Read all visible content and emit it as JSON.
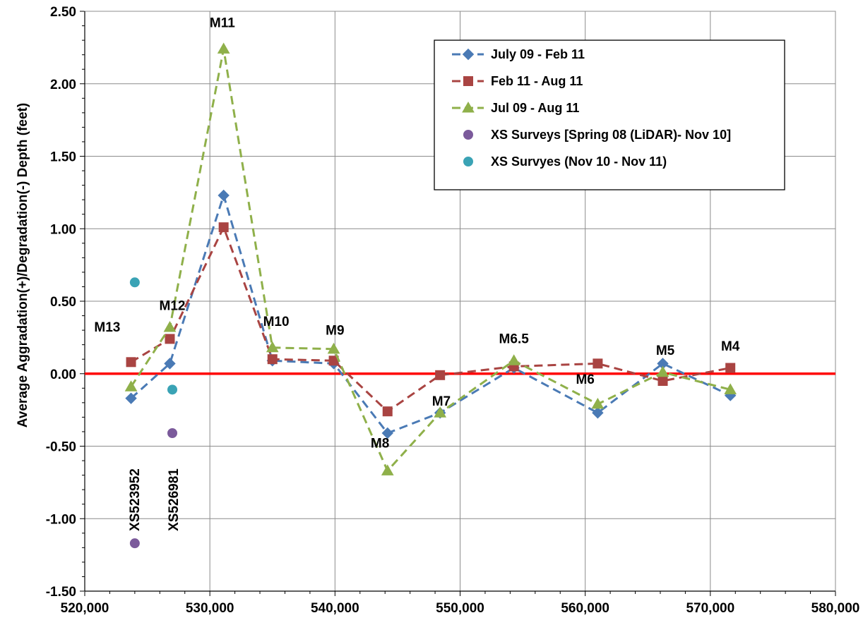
{
  "chart_data": {
    "type": "line",
    "title": "",
    "xlabel": "",
    "ylabel": "Average Aggradation(+)/Degradation(-) Depth (feet)",
    "xlim": [
      520000,
      580000
    ],
    "ylim": [
      -1.5,
      2.5
    ],
    "x_ticks": [
      "520,000",
      "530,000",
      "540,000",
      "550,000",
      "560,000",
      "570,000",
      "580,000"
    ],
    "y_ticks": [
      "2.50",
      "2.00",
      "1.50",
      "1.00",
      "0.50",
      "0.00",
      "-0.50",
      "-1.00",
      "-1.50"
    ],
    "grid": true,
    "legend_position": "top-right",
    "zero_line_color": "#ff0000",
    "series": [
      {
        "name": "July 09 - Feb 11",
        "color": "#4a7ab5",
        "marker": "diamond",
        "line": "dashed",
        "points": [
          [
            523700,
            -0.17
          ],
          [
            526800,
            0.07
          ],
          [
            531100,
            1.23
          ],
          [
            535000,
            0.09
          ],
          [
            539900,
            0.07
          ],
          [
            544200,
            -0.41
          ],
          [
            548400,
            -0.27
          ],
          [
            554300,
            0.04
          ],
          [
            561000,
            -0.27
          ],
          [
            566200,
            0.07
          ],
          [
            571600,
            -0.15
          ]
        ]
      },
      {
        "name": "Feb 11 - Aug 11",
        "color": "#a94442",
        "marker": "square",
        "line": "dashed",
        "points": [
          [
            523700,
            0.08
          ],
          [
            526800,
            0.24
          ],
          [
            531100,
            1.01
          ],
          [
            535000,
            0.1
          ],
          [
            539900,
            0.09
          ],
          [
            544200,
            -0.26
          ],
          [
            548400,
            -0.01
          ],
          [
            554300,
            0.05
          ],
          [
            561000,
            0.07
          ],
          [
            566200,
            -0.05
          ],
          [
            571600,
            0.04
          ]
        ]
      },
      {
        "name": "Jul 09 - Aug 11",
        "color": "#8fb04a",
        "marker": "triangle",
        "line": "dashed",
        "points": [
          [
            523700,
            -0.09
          ],
          [
            526800,
            0.32
          ],
          [
            531100,
            2.24
          ],
          [
            535000,
            0.18
          ],
          [
            539900,
            0.17
          ],
          [
            544200,
            -0.67
          ],
          [
            548400,
            -0.27
          ],
          [
            554300,
            0.09
          ],
          [
            561000,
            -0.21
          ],
          [
            566200,
            0.01
          ],
          [
            571600,
            -0.11
          ]
        ]
      },
      {
        "name": "XS Surveys [Spring 08 (LiDAR)- Nov 10]",
        "color": "#7b5a9b",
        "marker": "circle",
        "line": "none",
        "points": [
          [
            524000,
            -1.17
          ],
          [
            527000,
            -0.41
          ]
        ]
      },
      {
        "name": "XS Survyes (Nov 10 - Nov 11)",
        "color": "#3aa3b5",
        "marker": "circle",
        "line": "none",
        "points": [
          [
            524000,
            0.63
          ],
          [
            527000,
            -0.11
          ]
        ]
      }
    ],
    "annotations": [
      {
        "text": "M13",
        "x": 521800,
        "y": 0.29,
        "rotate": false
      },
      {
        "text": "M12",
        "x": 527000,
        "y": 0.44,
        "rotate": false
      },
      {
        "text": "M11",
        "x": 531000,
        "y": 2.39,
        "rotate": false
      },
      {
        "text": "M10",
        "x": 535300,
        "y": 0.33,
        "rotate": false
      },
      {
        "text": "M9",
        "x": 540000,
        "y": 0.27,
        "rotate": false
      },
      {
        "text": "M8",
        "x": 543600,
        "y": -0.51,
        "rotate": false
      },
      {
        "text": "M7",
        "x": 548500,
        "y": -0.22,
        "rotate": false
      },
      {
        "text": "M6.5",
        "x": 554300,
        "y": 0.21,
        "rotate": false
      },
      {
        "text": "M6",
        "x": 560000,
        "y": -0.07,
        "rotate": false
      },
      {
        "text": "M5",
        "x": 566400,
        "y": 0.13,
        "rotate": false
      },
      {
        "text": "M4",
        "x": 571600,
        "y": 0.16,
        "rotate": false
      },
      {
        "text": "XS523952",
        "x": 524000,
        "y": -0.87,
        "rotate": true
      },
      {
        "text": "XS526981",
        "x": 527100,
        "y": -0.87,
        "rotate": true
      }
    ]
  }
}
